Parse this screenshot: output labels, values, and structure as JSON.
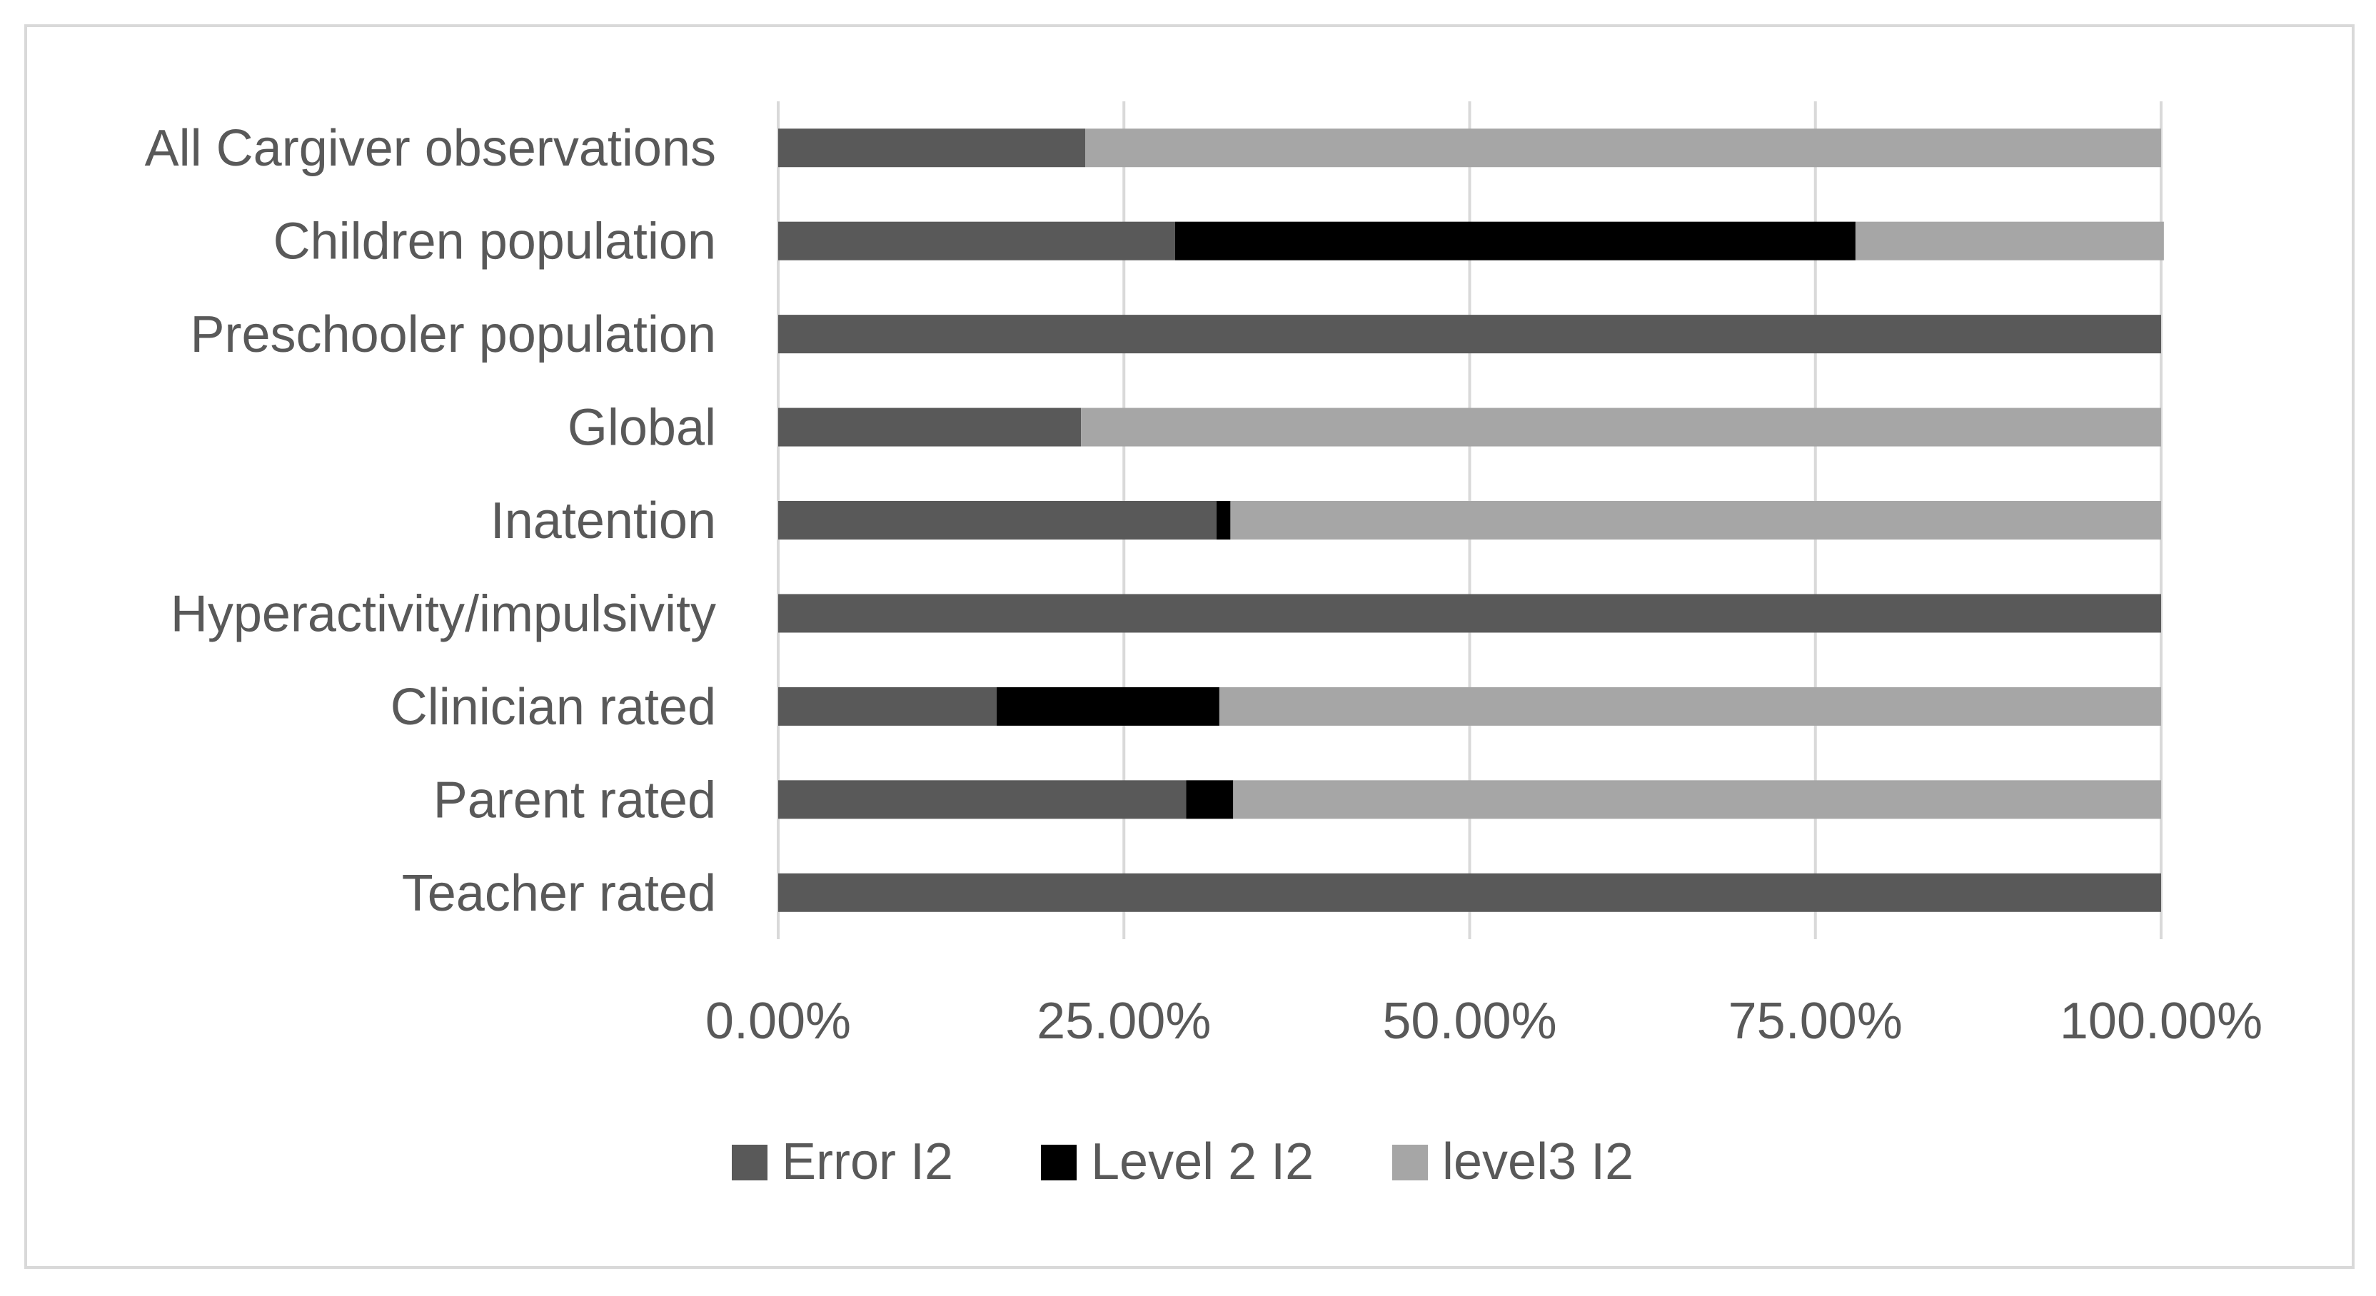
{
  "chart_data": {
    "type": "bar",
    "orientation": "horizontal",
    "stacked": true,
    "categories": [
      "All Cargiver observations",
      "Children population",
      "Preschooler population",
      "Global",
      "Inatention",
      "Hyperactivity/impulsivity",
      "Clinician rated",
      "Parent rated",
      "Teacher rated"
    ],
    "series": [
      {
        "name": "Error I2",
        "color": "#595959",
        "values": [
          22.2,
          28.7,
          100.0,
          21.9,
          31.7,
          100.0,
          15.8,
          29.5,
          100.0
        ]
      },
      {
        "name": "Level 2 I2",
        "color": "#000000",
        "values": [
          0.0,
          49.2,
          0.0,
          0.0,
          1.0,
          0.0,
          16.1,
          3.4,
          0.0
        ]
      },
      {
        "name": "level3 I2",
        "color": "#a6a6a6",
        "values": [
          77.8,
          22.3,
          0.0,
          78.1,
          67.3,
          0.0,
          68.1,
          67.1,
          0.0
        ]
      }
    ],
    "xlim": [
      0,
      100
    ],
    "x_ticks": [
      "0.00%",
      "25.00%",
      "50.00%",
      "75.00%",
      "100.00%"
    ],
    "x_tick_values": [
      0,
      25,
      50,
      75,
      100
    ],
    "grid": true,
    "legend_position": "bottom",
    "title": "",
    "xlabel": "",
    "ylabel": ""
  }
}
